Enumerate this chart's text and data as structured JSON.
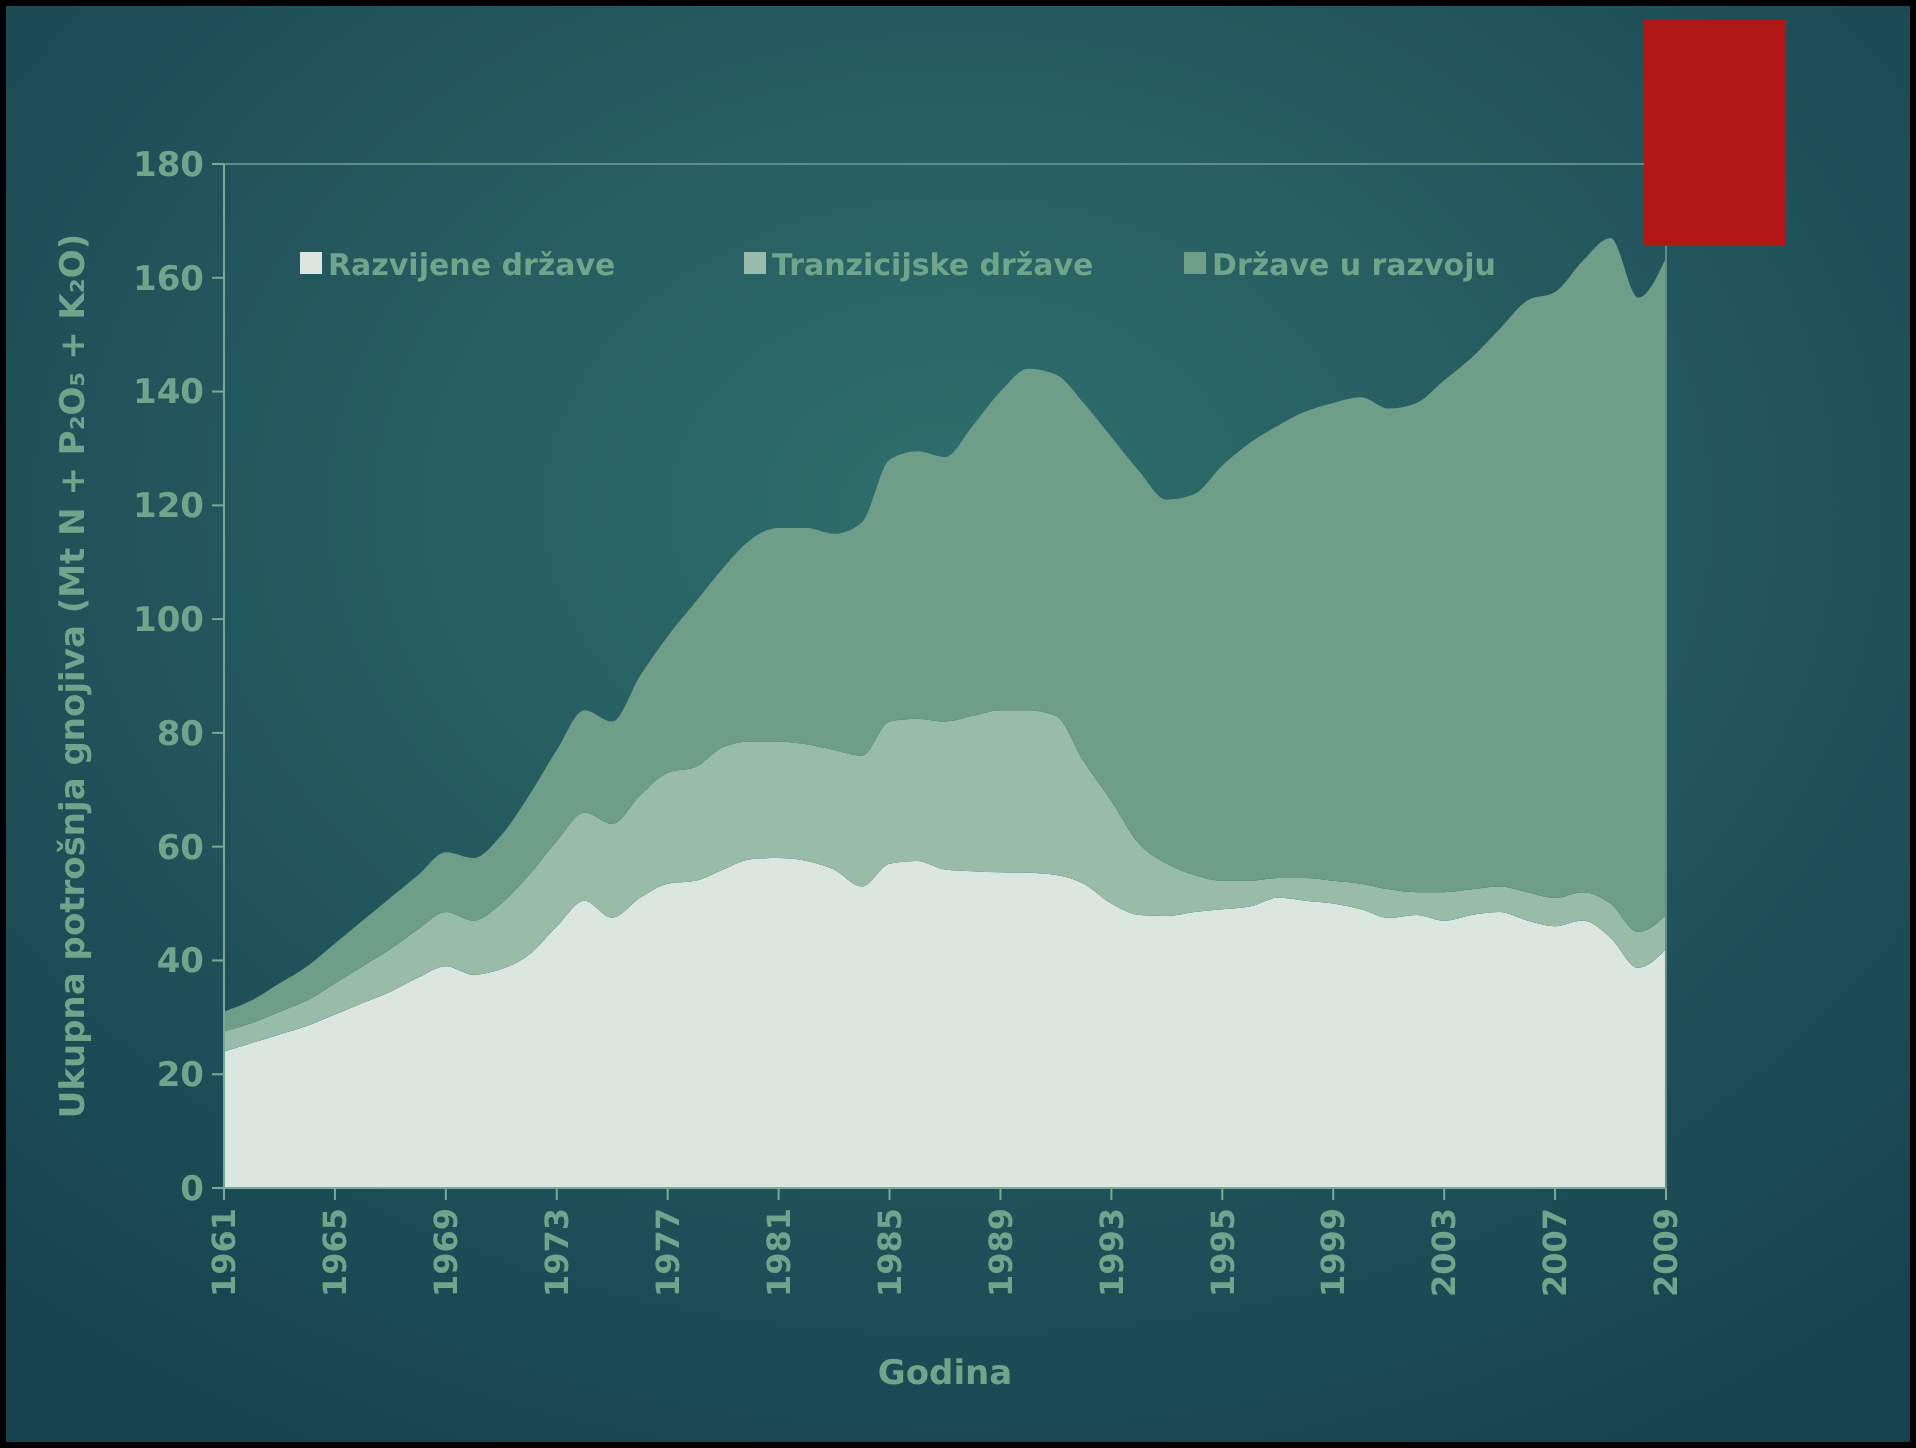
{
  "chart_data": {
    "type": "area",
    "stacked": true,
    "xlabel": "Godina",
    "ylabel": "Ukupna potrošnja gnojiva (Mt N + P₂O₅ + K₂O)",
    "categories": [
      "1961",
      null,
      null,
      null,
      "1965",
      null,
      null,
      null,
      "1969",
      null,
      null,
      null,
      "1973",
      null,
      null,
      null,
      "1977",
      null,
      null,
      null,
      "1981",
      null,
      null,
      null,
      "1985",
      null,
      null,
      null,
      "1989",
      null,
      null,
      null,
      "1993",
      null,
      null,
      null,
      "1995",
      null,
      null,
      null,
      "1999",
      null,
      null,
      null,
      "2003",
      null,
      null,
      null,
      "2007",
      null,
      null,
      null,
      "2009"
    ],
    "ylim": [
      0,
      180
    ],
    "yticks": [
      0,
      20,
      40,
      60,
      80,
      100,
      120,
      140,
      160,
      180
    ],
    "legend": "top",
    "grid": false,
    "series": [
      {
        "name": "Razvijene države",
        "color": "#dce6e1",
        "values": [
          24,
          25.5,
          27,
          28.5,
          30.5,
          32.5,
          34.5,
          37,
          39,
          37.5,
          38.5,
          41,
          46,
          50.5,
          47.5,
          51,
          53.5,
          54,
          56,
          57.8,
          58,
          57.5,
          56,
          53,
          57,
          57.5,
          56,
          55.7,
          55.5,
          55.4,
          55,
          53.5,
          50,
          48,
          47.8,
          48.5,
          49,
          49.5,
          51,
          50.5,
          50,
          49,
          47.5,
          48,
          47,
          48,
          48.5,
          47,
          46,
          47,
          44,
          38.7,
          42
        ]
      },
      {
        "name": "Tranzicijske države",
        "color": "#99bba9",
        "values": [
          3.5,
          3.5,
          4,
          4.5,
          5.5,
          6.5,
          7.5,
          8.5,
          9.5,
          9.5,
          11.5,
          14,
          15,
          15.5,
          16.5,
          18,
          19.5,
          20,
          21.5,
          20.7,
          20.5,
          20.5,
          21,
          23,
          25,
          25,
          26,
          27.3,
          28.5,
          28.6,
          28,
          21.5,
          18,
          12.5,
          9.2,
          6.5,
          5,
          4.5,
          3.5,
          4,
          4,
          4.5,
          5,
          4,
          5,
          4.5,
          4.5,
          5,
          5,
          5,
          6,
          6.3,
          6
        ]
      },
      {
        "name": "Države u razvoju",
        "color": "#6e9e87",
        "values": [
          3.5,
          4,
          5,
          6,
          7,
          8,
          9,
          9.5,
          10.5,
          11,
          12,
          14,
          16,
          18,
          18,
          21,
          24,
          29,
          31.5,
          35.5,
          37.5,
          38,
          38,
          41,
          46,
          47,
          46.5,
          51,
          56,
          60,
          60,
          63,
          64,
          65.5,
          64,
          67,
          73,
          77,
          79.5,
          82,
          84,
          85.5,
          84.5,
          86,
          90,
          93.5,
          98,
          104,
          106.5,
          111,
          117,
          111.5,
          115.5
        ]
      }
    ]
  }
}
